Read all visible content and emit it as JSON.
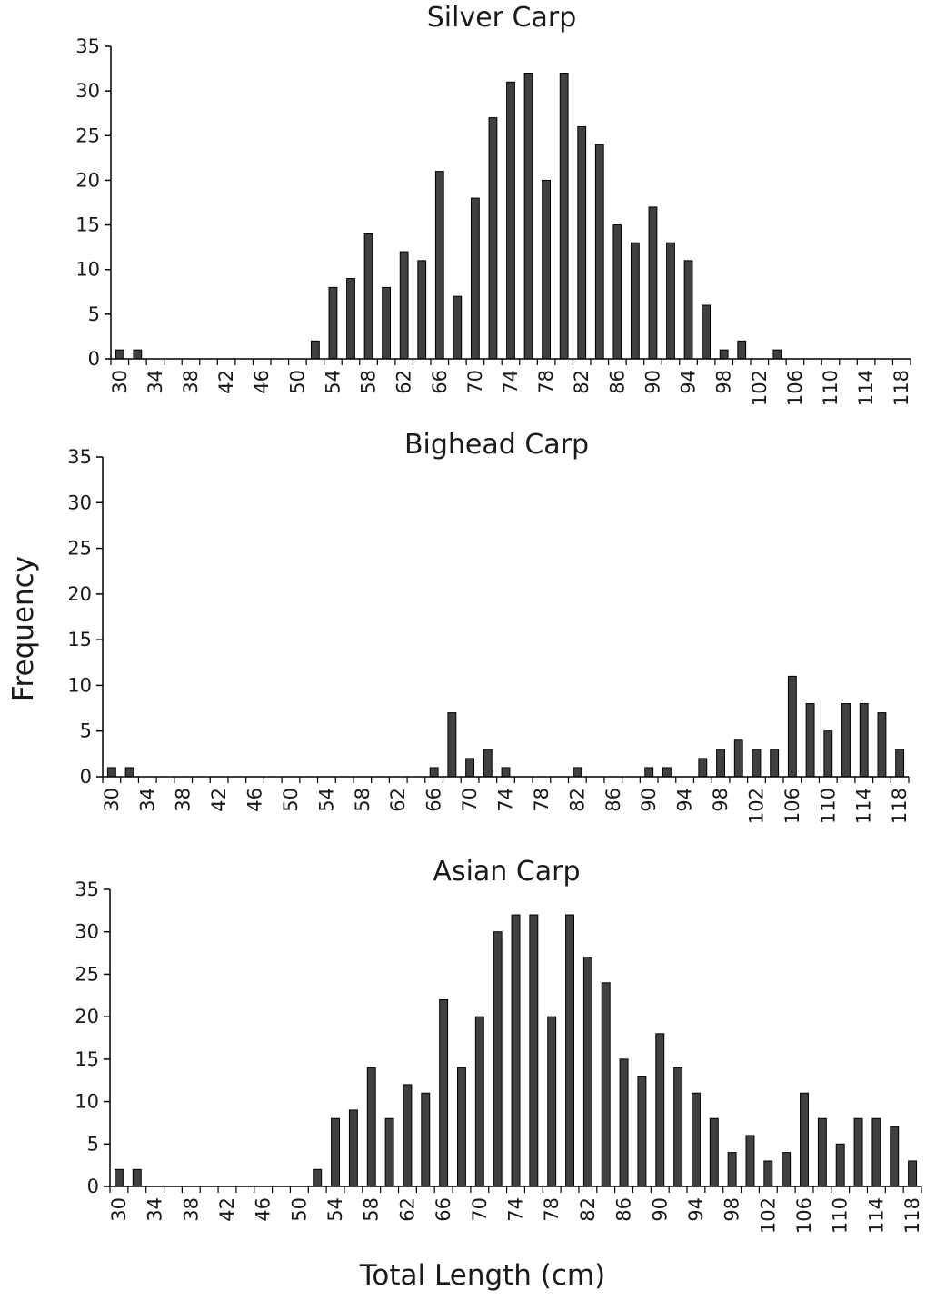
{
  "figure": {
    "ylabel": "Frequency",
    "xlabel": "Total Length (cm)"
  },
  "chart_data": [
    {
      "type": "bar",
      "title": "Silver Carp",
      "ylim": [
        0,
        35
      ],
      "yticks": [
        0,
        5,
        10,
        15,
        20,
        25,
        30,
        35
      ],
      "xticks": [
        30,
        34,
        38,
        42,
        46,
        50,
        54,
        58,
        62,
        66,
        70,
        74,
        78,
        82,
        86,
        90,
        94,
        98,
        102,
        106,
        110,
        114,
        118
      ],
      "categories": [
        30,
        32,
        34,
        36,
        38,
        40,
        42,
        44,
        46,
        48,
        50,
        52,
        54,
        56,
        58,
        60,
        62,
        64,
        66,
        68,
        70,
        72,
        74,
        76,
        78,
        80,
        82,
        84,
        86,
        88,
        90,
        92,
        94,
        96,
        98,
        100,
        102,
        104,
        106,
        108,
        110,
        112,
        114,
        116,
        118
      ],
      "values": [
        1,
        1,
        0,
        0,
        0,
        0,
        0,
        0,
        0,
        0,
        0,
        2,
        8,
        9,
        14,
        8,
        12,
        11,
        21,
        7,
        18,
        27,
        31,
        32,
        20,
        32,
        26,
        24,
        15,
        13,
        17,
        13,
        11,
        6,
        1,
        2,
        0,
        1,
        0,
        0,
        0,
        0,
        0,
        0,
        0
      ],
      "grid": false
    },
    {
      "type": "bar",
      "title": "Bighead Carp",
      "ylim": [
        0,
        35
      ],
      "yticks": [
        0,
        5,
        10,
        15,
        20,
        25,
        30,
        35
      ],
      "xticks": [
        30,
        34,
        38,
        42,
        46,
        50,
        54,
        58,
        62,
        66,
        70,
        74,
        78,
        82,
        86,
        90,
        94,
        98,
        102,
        106,
        110,
        114,
        118
      ],
      "categories": [
        30,
        32,
        34,
        36,
        38,
        40,
        42,
        44,
        46,
        48,
        50,
        52,
        54,
        56,
        58,
        60,
        62,
        64,
        66,
        68,
        70,
        72,
        74,
        76,
        78,
        80,
        82,
        84,
        86,
        88,
        90,
        92,
        94,
        96,
        98,
        100,
        102,
        104,
        106,
        108,
        110,
        112,
        114,
        116,
        118
      ],
      "values": [
        1,
        1,
        0,
        0,
        0,
        0,
        0,
        0,
        0,
        0,
        0,
        0,
        0,
        0,
        0,
        0,
        0,
        0,
        1,
        7,
        2,
        3,
        1,
        0,
        0,
        0,
        1,
        0,
        0,
        0,
        1,
        1,
        0,
        2,
        3,
        4,
        3,
        3,
        11,
        8,
        5,
        8,
        8,
        7,
        3
      ],
      "grid": false
    },
    {
      "type": "bar",
      "title": "Asian Carp",
      "ylim": [
        0,
        35
      ],
      "yticks": [
        0,
        5,
        10,
        15,
        20,
        25,
        30,
        35
      ],
      "xticks": [
        30,
        34,
        38,
        42,
        46,
        50,
        54,
        58,
        62,
        66,
        70,
        74,
        78,
        82,
        86,
        90,
        94,
        98,
        102,
        106,
        110,
        114,
        118
      ],
      "categories": [
        30,
        32,
        34,
        36,
        38,
        40,
        42,
        44,
        46,
        48,
        50,
        52,
        54,
        56,
        58,
        60,
        62,
        64,
        66,
        68,
        70,
        72,
        74,
        76,
        78,
        80,
        82,
        84,
        86,
        88,
        90,
        92,
        94,
        96,
        98,
        100,
        102,
        104,
        106,
        108,
        110,
        112,
        114,
        116,
        118
      ],
      "values": [
        2,
        2,
        0,
        0,
        0,
        0,
        0,
        0,
        0,
        0,
        0,
        2,
        8,
        9,
        14,
        8,
        12,
        11,
        22,
        14,
        20,
        30,
        32,
        32,
        20,
        32,
        27,
        24,
        15,
        13,
        18,
        14,
        11,
        8,
        4,
        6,
        3,
        4,
        11,
        8,
        5,
        8,
        8,
        7,
        3
      ],
      "grid": false
    }
  ],
  "colors": {
    "bar_fill": "#404040",
    "bar_stroke": "#000000",
    "axis": "#000000"
  }
}
